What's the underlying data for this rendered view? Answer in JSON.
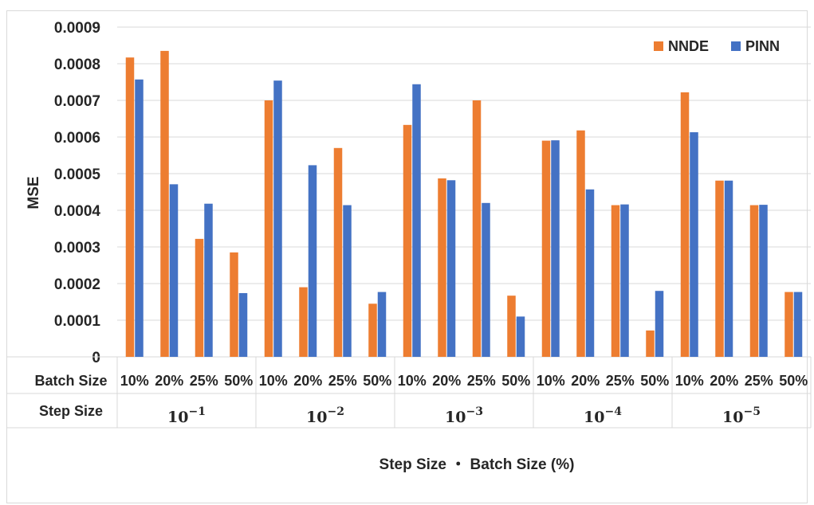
{
  "chart_data": {
    "type": "bar",
    "title": "",
    "xlabel": "Step Size ・ Batch Size (%)",
    "ylabel": "MSE",
    "ylim": [
      0,
      0.0009
    ],
    "yticks": [
      "0",
      "0.0001",
      "0.0002",
      "0.0003",
      "0.0004",
      "0.0005",
      "0.0006",
      "0.0007",
      "0.0008",
      "0.0009"
    ],
    "grid": true,
    "legend_position": "top-right",
    "row_labels": {
      "batch": "Batch Size",
      "step": "Step Size"
    },
    "groups": [
      {
        "step_base": "10",
        "step_exp": "−1",
        "batch_sizes": [
          "10%",
          "20%",
          "25%",
          "50%"
        ]
      },
      {
        "step_base": "10",
        "step_exp": "−2",
        "batch_sizes": [
          "10%",
          "20%",
          "25%",
          "50%"
        ]
      },
      {
        "step_base": "10",
        "step_exp": "−3",
        "batch_sizes": [
          "10%",
          "20%",
          "25%",
          "50%"
        ]
      },
      {
        "step_base": "10",
        "step_exp": "−4",
        "batch_sizes": [
          "10%",
          "20%",
          "25%",
          "50%"
        ]
      },
      {
        "step_base": "10",
        "step_exp": "−5",
        "batch_sizes": [
          "10%",
          "20%",
          "25%",
          "50%"
        ]
      }
    ],
    "series": [
      {
        "name": "NNDE",
        "color": "#ED7D31",
        "values": [
          0.000817,
          0.000835,
          0.000322,
          0.000285,
          0.0007,
          0.00019,
          0.00057,
          0.000145,
          0.000633,
          0.000487,
          0.0007,
          0.000167,
          0.00059,
          0.000618,
          0.000414,
          7.2e-05,
          0.000722,
          0.000481,
          0.000414,
          0.000177
        ]
      },
      {
        "name": "PINN",
        "color": "#4472C4",
        "values": [
          0.000757,
          0.000471,
          0.000418,
          0.000174,
          0.000754,
          0.000523,
          0.000414,
          0.000177,
          0.000744,
          0.000482,
          0.00042,
          0.00011,
          0.000591,
          0.000457,
          0.000416,
          0.00018,
          0.000613,
          0.000481,
          0.000415,
          0.000177
        ]
      }
    ]
  }
}
